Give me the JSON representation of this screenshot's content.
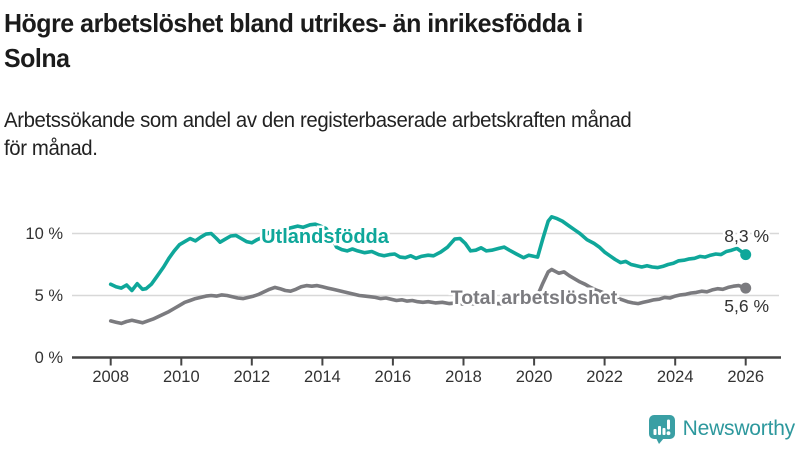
{
  "header": {
    "title_lines": [
      "Högre arbetslöshet bland utrikes- än inrikesfödda i",
      "Solna"
    ],
    "subtitle_lines": [
      "Arbetssökande som andel av den registerbaserade arbetskraften månad",
      "för månad."
    ]
  },
  "colors": {
    "title_text": "#1b1b1b",
    "body_text": "#222222",
    "axis_text": "#333333",
    "axis_line": "#454545",
    "gridline": "#d8d8d8",
    "series_utlandsfodda": "#0fa79a",
    "series_total": "#7b7b7f",
    "logo_mark": "#3a9fa4",
    "logo_text": "#2d989d"
  },
  "chart_data": {
    "type": "line",
    "title": "Högre arbetslöshet bland utrikes- än inrikesfödda i Solna",
    "subtitle": "Arbetssökande som andel av den registerbaserade arbetskraften månad för månad.",
    "unit": "%",
    "grid": true,
    "legend_position": "inline-labels",
    "x_axis": {
      "label": "",
      "range": [
        2007.75,
        2026.9
      ],
      "ticks": [
        {
          "value": 2008,
          "label": "2008"
        },
        {
          "value": 2010,
          "label": "2010"
        },
        {
          "value": 2012,
          "label": "2012"
        },
        {
          "value": 2014,
          "label": "2014"
        },
        {
          "value": 2016,
          "label": "2016"
        },
        {
          "value": 2018,
          "label": "2018"
        },
        {
          "value": 2020,
          "label": "2020"
        },
        {
          "value": 2022,
          "label": "2022"
        },
        {
          "value": 2024,
          "label": "2024"
        },
        {
          "value": 2026,
          "label": "2026"
        }
      ]
    },
    "y_axis": {
      "label": "",
      "range": [
        0,
        12
      ],
      "gridlines": [
        5,
        10
      ],
      "ticks": [
        {
          "value": 0,
          "label": "0 %"
        },
        {
          "value": 5,
          "label": "5 %"
        },
        {
          "value": 10,
          "label": "10 %"
        }
      ]
    },
    "series": [
      {
        "name": "Total arbetslöshet",
        "color": "#7b7b7f",
        "end_label": "5,6 %",
        "end_value": 5.6,
        "points": [
          [
            2008.0,
            2.95
          ],
          [
            2008.15,
            2.85
          ],
          [
            2008.3,
            2.75
          ],
          [
            2008.45,
            2.9
          ],
          [
            2008.6,
            3.0
          ],
          [
            2008.75,
            2.9
          ],
          [
            2008.9,
            2.8
          ],
          [
            2009.05,
            2.95
          ],
          [
            2009.2,
            3.1
          ],
          [
            2009.35,
            3.3
          ],
          [
            2009.5,
            3.5
          ],
          [
            2009.65,
            3.7
          ],
          [
            2009.8,
            3.95
          ],
          [
            2009.95,
            4.2
          ],
          [
            2010.1,
            4.45
          ],
          [
            2010.25,
            4.6
          ],
          [
            2010.4,
            4.75
          ],
          [
            2010.55,
            4.85
          ],
          [
            2010.7,
            4.95
          ],
          [
            2010.85,
            5.0
          ],
          [
            2011.0,
            4.95
          ],
          [
            2011.15,
            5.05
          ],
          [
            2011.3,
            5.0
          ],
          [
            2011.45,
            4.9
          ],
          [
            2011.6,
            4.8
          ],
          [
            2011.75,
            4.75
          ],
          [
            2011.9,
            4.85
          ],
          [
            2012.05,
            4.95
          ],
          [
            2012.2,
            5.1
          ],
          [
            2012.35,
            5.3
          ],
          [
            2012.5,
            5.5
          ],
          [
            2012.65,
            5.65
          ],
          [
            2012.8,
            5.55
          ],
          [
            2012.95,
            5.4
          ],
          [
            2013.1,
            5.35
          ],
          [
            2013.25,
            5.5
          ],
          [
            2013.4,
            5.7
          ],
          [
            2013.55,
            5.8
          ],
          [
            2013.7,
            5.75
          ],
          [
            2013.85,
            5.8
          ],
          [
            2014.0,
            5.7
          ],
          [
            2014.15,
            5.6
          ],
          [
            2014.3,
            5.5
          ],
          [
            2014.45,
            5.4
          ],
          [
            2014.6,
            5.3
          ],
          [
            2014.75,
            5.2
          ],
          [
            2014.9,
            5.1
          ],
          [
            2015.05,
            5.0
          ],
          [
            2015.2,
            4.95
          ],
          [
            2015.35,
            4.9
          ],
          [
            2015.5,
            4.85
          ],
          [
            2015.65,
            4.75
          ],
          [
            2015.8,
            4.8
          ],
          [
            2015.95,
            4.7
          ],
          [
            2016.1,
            4.6
          ],
          [
            2016.25,
            4.65
          ],
          [
            2016.4,
            4.55
          ],
          [
            2016.55,
            4.6
          ],
          [
            2016.7,
            4.5
          ],
          [
            2016.85,
            4.45
          ],
          [
            2017.0,
            4.5
          ],
          [
            2017.2,
            4.4
          ],
          [
            2017.4,
            4.45
          ],
          [
            2017.6,
            4.35
          ],
          [
            2017.8,
            4.4
          ],
          [
            2018.0,
            4.3
          ],
          [
            2018.2,
            4.35
          ],
          [
            2018.4,
            4.3
          ],
          [
            2018.6,
            4.35
          ],
          [
            2018.8,
            4.3
          ],
          [
            2019.0,
            4.35
          ],
          [
            2019.2,
            4.3
          ],
          [
            2019.4,
            4.35
          ],
          [
            2019.6,
            4.4
          ],
          [
            2019.8,
            4.5
          ],
          [
            2019.95,
            4.65
          ],
          [
            2020.1,
            5.0
          ],
          [
            2020.25,
            6.0
          ],
          [
            2020.4,
            6.9
          ],
          [
            2020.5,
            7.1
          ],
          [
            2020.6,
            6.95
          ],
          [
            2020.7,
            6.8
          ],
          [
            2020.85,
            6.9
          ],
          [
            2021.0,
            6.6
          ],
          [
            2021.15,
            6.35
          ],
          [
            2021.3,
            6.1
          ],
          [
            2021.45,
            5.9
          ],
          [
            2021.6,
            5.65
          ],
          [
            2021.75,
            5.45
          ],
          [
            2021.9,
            5.3
          ],
          [
            2022.05,
            5.1
          ],
          [
            2022.2,
            4.95
          ],
          [
            2022.35,
            4.8
          ],
          [
            2022.5,
            4.65
          ],
          [
            2022.65,
            4.5
          ],
          [
            2022.8,
            4.4
          ],
          [
            2022.95,
            4.35
          ],
          [
            2023.1,
            4.45
          ],
          [
            2023.25,
            4.55
          ],
          [
            2023.4,
            4.65
          ],
          [
            2023.55,
            4.7
          ],
          [
            2023.7,
            4.85
          ],
          [
            2023.85,
            4.8
          ],
          [
            2024.0,
            4.95
          ],
          [
            2024.15,
            5.05
          ],
          [
            2024.3,
            5.1
          ],
          [
            2024.45,
            5.2
          ],
          [
            2024.6,
            5.25
          ],
          [
            2024.75,
            5.35
          ],
          [
            2024.9,
            5.3
          ],
          [
            2025.05,
            5.45
          ],
          [
            2025.2,
            5.55
          ],
          [
            2025.35,
            5.5
          ],
          [
            2025.5,
            5.65
          ],
          [
            2025.65,
            5.75
          ],
          [
            2025.8,
            5.8
          ],
          [
            2025.9,
            5.7
          ],
          [
            2026.0,
            5.6
          ]
        ]
      },
      {
        "name": "Utlandsfödda",
        "color": "#0fa79a",
        "end_label": "8,3 %",
        "end_value": 8.3,
        "points": [
          [
            2008.0,
            5.9
          ],
          [
            2008.15,
            5.7
          ],
          [
            2008.3,
            5.6
          ],
          [
            2008.45,
            5.85
          ],
          [
            2008.6,
            5.4
          ],
          [
            2008.75,
            5.95
          ],
          [
            2008.9,
            5.5
          ],
          [
            2009.0,
            5.55
          ],
          [
            2009.15,
            5.9
          ],
          [
            2009.3,
            6.5
          ],
          [
            2009.5,
            7.3
          ],
          [
            2009.65,
            8.0
          ],
          [
            2009.8,
            8.6
          ],
          [
            2009.95,
            9.1
          ],
          [
            2010.1,
            9.35
          ],
          [
            2010.25,
            9.6
          ],
          [
            2010.4,
            9.4
          ],
          [
            2010.55,
            9.7
          ],
          [
            2010.7,
            9.95
          ],
          [
            2010.85,
            10.0
          ],
          [
            2011.0,
            9.6
          ],
          [
            2011.1,
            9.3
          ],
          [
            2011.25,
            9.55
          ],
          [
            2011.4,
            9.8
          ],
          [
            2011.55,
            9.85
          ],
          [
            2011.7,
            9.6
          ],
          [
            2011.85,
            9.35
          ],
          [
            2012.0,
            9.25
          ],
          [
            2012.15,
            9.5
          ],
          [
            2012.3,
            9.7
          ],
          [
            2012.45,
            10.0
          ],
          [
            2012.6,
            10.3
          ],
          [
            2012.75,
            10.15
          ],
          [
            2012.9,
            10.3
          ],
          [
            2013.1,
            10.45
          ],
          [
            2013.3,
            10.6
          ],
          [
            2013.45,
            10.5
          ],
          [
            2013.65,
            10.7
          ],
          [
            2013.8,
            10.75
          ],
          [
            2013.95,
            10.6
          ],
          [
            2014.1,
            10.4
          ],
          [
            2014.25,
            9.8
          ],
          [
            2014.4,
            8.9
          ],
          [
            2014.55,
            8.7
          ],
          [
            2014.7,
            8.6
          ],
          [
            2014.85,
            8.75
          ],
          [
            2015.0,
            8.6
          ],
          [
            2015.2,
            8.45
          ],
          [
            2015.4,
            8.55
          ],
          [
            2015.6,
            8.3
          ],
          [
            2015.75,
            8.2
          ],
          [
            2015.9,
            8.3
          ],
          [
            2016.05,
            8.35
          ],
          [
            2016.2,
            8.1
          ],
          [
            2016.35,
            8.05
          ],
          [
            2016.5,
            8.2
          ],
          [
            2016.65,
            8.0
          ],
          [
            2016.8,
            8.15
          ],
          [
            2017.0,
            8.25
          ],
          [
            2017.15,
            8.2
          ],
          [
            2017.35,
            8.5
          ],
          [
            2017.55,
            8.9
          ],
          [
            2017.75,
            9.55
          ],
          [
            2017.9,
            9.6
          ],
          [
            2018.05,
            9.2
          ],
          [
            2018.2,
            8.6
          ],
          [
            2018.35,
            8.65
          ],
          [
            2018.5,
            8.85
          ],
          [
            2018.65,
            8.6
          ],
          [
            2018.8,
            8.65
          ],
          [
            2019.0,
            8.8
          ],
          [
            2019.15,
            8.9
          ],
          [
            2019.3,
            8.65
          ],
          [
            2019.5,
            8.35
          ],
          [
            2019.7,
            8.05
          ],
          [
            2019.85,
            8.25
          ],
          [
            2020.0,
            8.15
          ],
          [
            2020.1,
            8.1
          ],
          [
            2020.25,
            9.6
          ],
          [
            2020.4,
            11.0
          ],
          [
            2020.5,
            11.35
          ],
          [
            2020.65,
            11.2
          ],
          [
            2020.8,
            11.0
          ],
          [
            2021.0,
            10.6
          ],
          [
            2021.15,
            10.3
          ],
          [
            2021.3,
            10.0
          ],
          [
            2021.5,
            9.5
          ],
          [
            2021.7,
            9.2
          ],
          [
            2021.85,
            8.9
          ],
          [
            2022.0,
            8.5
          ],
          [
            2022.15,
            8.2
          ],
          [
            2022.3,
            7.9
          ],
          [
            2022.45,
            7.65
          ],
          [
            2022.6,
            7.75
          ],
          [
            2022.75,
            7.5
          ],
          [
            2022.9,
            7.4
          ],
          [
            2023.05,
            7.3
          ],
          [
            2023.2,
            7.4
          ],
          [
            2023.35,
            7.3
          ],
          [
            2023.5,
            7.25
          ],
          [
            2023.65,
            7.35
          ],
          [
            2023.8,
            7.5
          ],
          [
            2023.95,
            7.6
          ],
          [
            2024.1,
            7.8
          ],
          [
            2024.25,
            7.85
          ],
          [
            2024.4,
            7.95
          ],
          [
            2024.55,
            8.0
          ],
          [
            2024.7,
            8.15
          ],
          [
            2024.85,
            8.1
          ],
          [
            2025.0,
            8.25
          ],
          [
            2025.15,
            8.35
          ],
          [
            2025.3,
            8.3
          ],
          [
            2025.45,
            8.55
          ],
          [
            2025.6,
            8.65
          ],
          [
            2025.75,
            8.8
          ],
          [
            2025.85,
            8.6
          ],
          [
            2026.0,
            8.3
          ]
        ]
      }
    ]
  },
  "footer": {
    "brand": "Newsworthy"
  }
}
